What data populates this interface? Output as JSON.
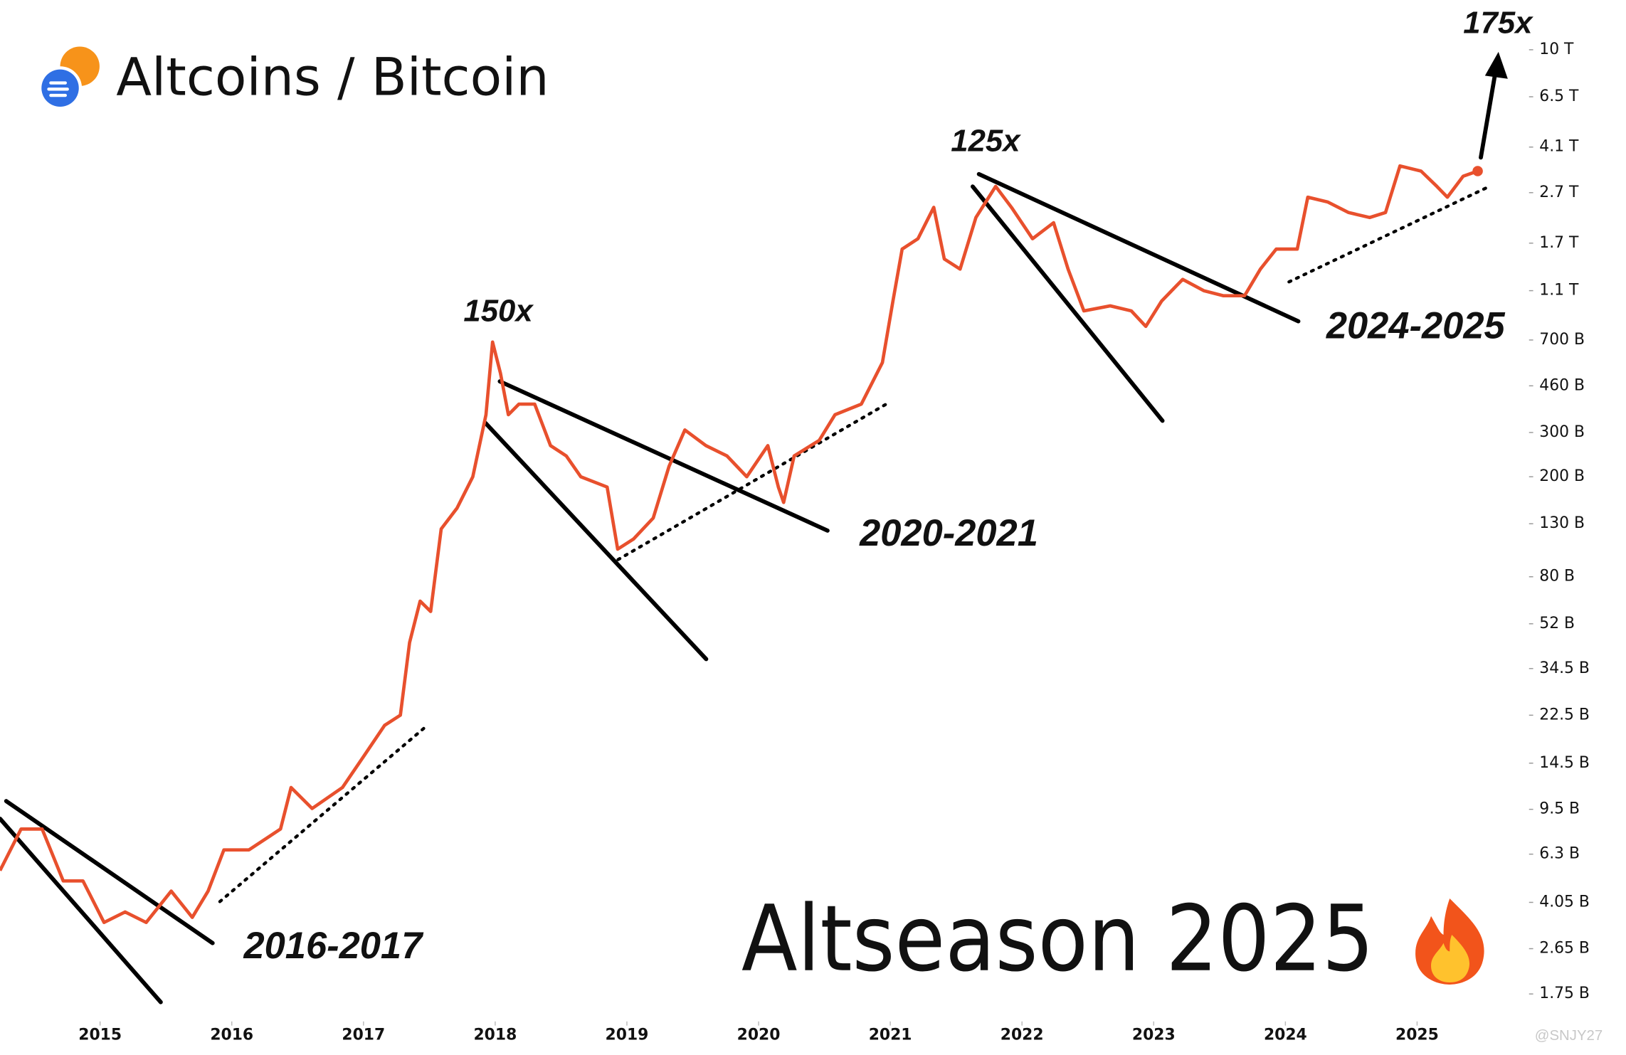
{
  "chart_data": {
    "type": "line",
    "title": "Altcoins / Bitcoin",
    "subtitle": "Altseason 2025",
    "annotations": [
      "150x",
      "125x",
      "175x",
      "2016-2017",
      "2020-2021",
      "2024-2025"
    ],
    "watermark": "@SNJY27",
    "color": "#e8502d",
    "log_scale": true,
    "grid": false,
    "xlim": [
      2014.24,
      2025.85
    ],
    "xticks": [
      2015,
      2016,
      2017,
      2018,
      2019,
      2020,
      2021,
      2022,
      2023,
      2024,
      2025
    ],
    "ylim": [
      1400000000.0,
      16000000000000.0
    ],
    "yticks": [
      {
        "value": 10000000000000.0,
        "label": "10 T"
      },
      {
        "value": 6500000000000.0,
        "label": "6.5 T"
      },
      {
        "value": 4100000000000.0,
        "label": "4.1 T"
      },
      {
        "value": 2700000000000.0,
        "label": "2.7 T"
      },
      {
        "value": 1700000000000.0,
        "label": "1.7 T"
      },
      {
        "value": 1100000000000.0,
        "label": "1.1 T"
      },
      {
        "value": 700000000000.0,
        "label": "700 B"
      },
      {
        "value": 460000000000.0,
        "label": "460 B"
      },
      {
        "value": 300000000000.0,
        "label": "300 B"
      },
      {
        "value": 200000000000.0,
        "label": "200 B"
      },
      {
        "value": 130000000000.0,
        "label": "130 B"
      },
      {
        "value": 80000000000.0,
        "label": "80 B"
      },
      {
        "value": 52000000000.0,
        "label": "52 B"
      },
      {
        "value": 34500000000.0,
        "label": "34.5 B"
      },
      {
        "value": 22500000000.0,
        "label": "22.5 B"
      },
      {
        "value": 14500000000.0,
        "label": "14.5 B"
      },
      {
        "value": 9500000000.0,
        "label": "9.5 B"
      },
      {
        "value": 6300000000.0,
        "label": "6.3 B"
      },
      {
        "value": 4050000000.0,
        "label": "4.05 B"
      },
      {
        "value": 2650000000.0,
        "label": "2.65 B"
      },
      {
        "value": 1750000000.0,
        "label": "1.75 B"
      }
    ],
    "x": [
      2014.24,
      2014.4,
      2014.56,
      2014.72,
      2014.87,
      2015.03,
      2015.19,
      2015.35,
      2015.54,
      2015.7,
      2015.82,
      2015.94,
      2016.13,
      2016.37,
      2016.45,
      2016.61,
      2016.84,
      2017.0,
      2017.16,
      2017.28,
      2017.35,
      2017.43,
      2017.51,
      2017.59,
      2017.71,
      2017.83,
      2017.93,
      2017.98,
      2018.04,
      2018.1,
      2018.18,
      2018.3,
      2018.42,
      2018.54,
      2018.65,
      2018.85,
      2018.93,
      2019.05,
      2019.2,
      2019.32,
      2019.44,
      2019.6,
      2019.76,
      2019.91,
      2020.07,
      2020.15,
      2020.19,
      2020.27,
      2020.46,
      2020.58,
      2020.78,
      2020.94,
      2021.02,
      2021.09,
      2021.21,
      2021.33,
      2021.41,
      2021.53,
      2021.65,
      2021.8,
      2021.92,
      2022.08,
      2022.24,
      2022.35,
      2022.47,
      2022.67,
      2022.83,
      2022.94,
      2023.06,
      2023.22,
      2023.38,
      2023.53,
      2023.69,
      2023.81,
      2023.93,
      2024.09,
      2024.17,
      2024.32,
      2024.48,
      2024.64,
      2024.76,
      2024.87,
      2025.03,
      2025.15,
      2025.23,
      2025.35,
      2025.46
    ],
    "values": [
      5420000000.0,
      7930000000.0,
      7930000000.0,
      4930000000.0,
      4930000000.0,
      3370000000.0,
      3710000000.0,
      3370000000.0,
      4490000000.0,
      3530000000.0,
      4490000000.0,
      6550000000.0,
      6550000000.0,
      7930000000.0,
      11600000000.0,
      9570000000.0,
      11600000000.0,
      15400000000.0,
      20500000000.0,
      22500000000.0,
      43800000000.0,
      64000000000.0,
      58200000000.0,
      124000000000.0,
      150000000000.0,
      200000000000.0,
      353000000000.0,
      687000000000.0,
      516000000000.0,
      353000000000.0,
      389000000000.0,
      389000000000.0,
      266000000000.0,
      242000000000.0,
      200000000000.0,
      182000000000.0,
      103000000000.0,
      113000000000.0,
      137000000000.0,
      220000000000.0,
      307000000000.0,
      266000000000.0,
      242000000000.0,
      200000000000.0,
      266000000000.0,
      182000000000.0,
      158000000000.0,
      242000000000.0,
      279000000000.0,
      353000000000.0,
      389000000000.0,
      569000000000.0,
      1000000000000.0,
      1610000000000.0,
      1770000000000.0,
      2360000000000.0,
      1470000000000.0,
      1340000000000.0,
      2150000000000.0,
      2860000000000.0,
      2360000000000.0,
      1770000000000.0,
      2050000000000.0,
      1340000000000.0,
      914000000000.0,
      957000000000.0,
      914000000000.0,
      793000000000.0,
      1000000000000.0,
      1220000000000.0,
      1100000000000.0,
      1050000000000.0,
      1050000000000.0,
      1340000000000.0,
      1610000000000.0,
      1610000000000.0,
      2590000000000.0,
      2480000000000.0,
      2250000000000.0,
      2150000000000.0,
      2250000000000.0,
      3450000000000.0,
      3290000000000.0,
      2860000000000.0,
      2590000000000.0,
      3140000000000.0,
      3290000000000.0
    ]
  }
}
